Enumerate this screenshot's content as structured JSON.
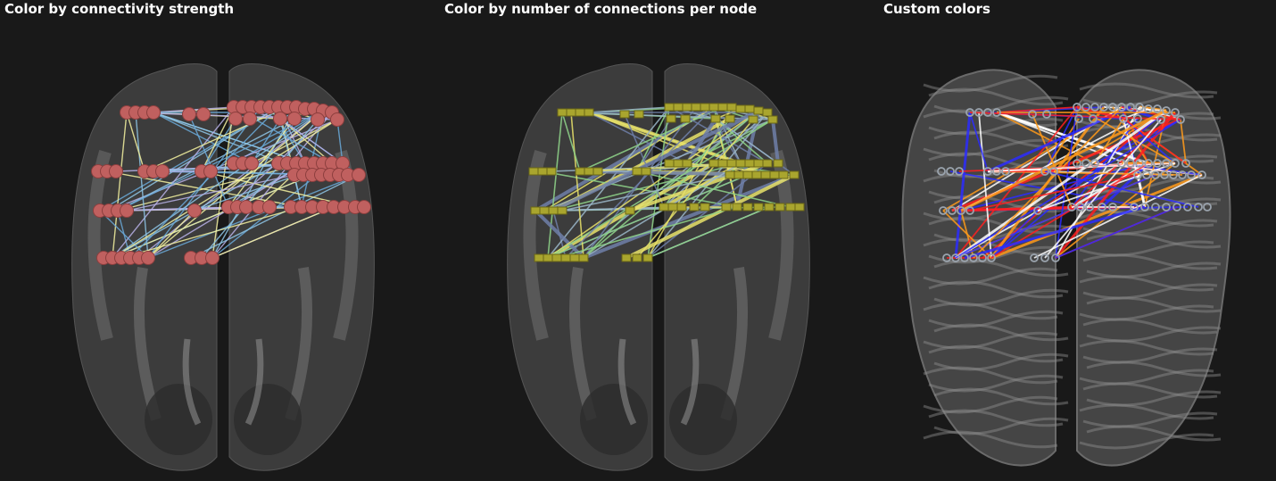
{
  "panels": [
    {
      "title": "Color by connectivity strength",
      "node_style": "sphere",
      "node_color": "#c0605f"
    },
    {
      "title": "Color by number of connections per node",
      "node_style": "bar",
      "node_color": "#a9a52e"
    },
    {
      "title": "Custom colors",
      "node_style": "ring",
      "node_color": "#9aa3ad"
    }
  ],
  "colors": {
    "background": "#191919",
    "brain": "#5a5a5a",
    "strength_edges": [
      "#8ec6e6",
      "#f4f2a0",
      "#6aa9d8",
      "#b7b0e6"
    ],
    "count_edges": [
      "#e8e26a",
      "#8fd58a",
      "#6f7fa8",
      "#9ab6c8"
    ],
    "custom_edges": [
      "#ffffff",
      "#2b2bff",
      "#ff9a1a",
      "#ff2020"
    ]
  }
}
